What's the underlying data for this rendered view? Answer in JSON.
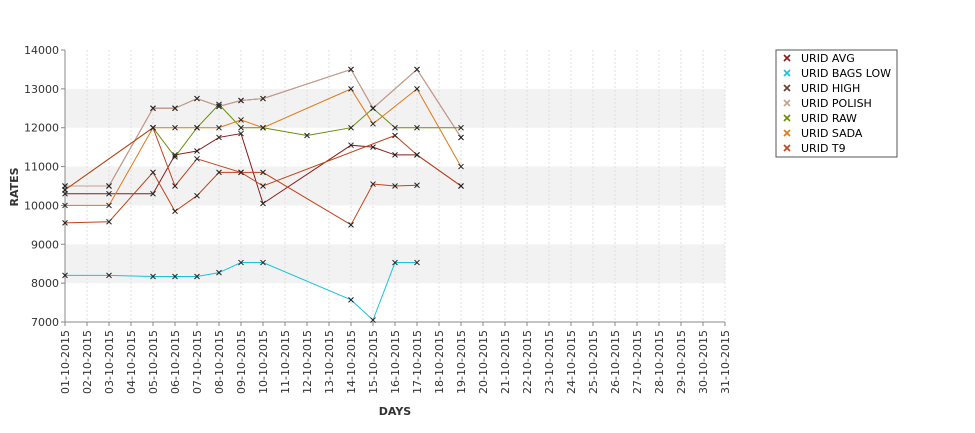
{
  "chart_data": {
    "type": "line",
    "xlabel": "DAYS",
    "ylabel": "RATES",
    "ylim": [
      7000,
      14000
    ],
    "yticks": [
      7000,
      8000,
      9000,
      10000,
      11000,
      12000,
      13000,
      14000
    ],
    "x": [
      "01-10-2015",
      "02-10-2015",
      "03-10-2015",
      "04-10-2015",
      "05-10-2015",
      "06-10-2015",
      "07-10-2015",
      "08-10-2015",
      "09-10-2015",
      "10-10-2015",
      "11-10-2015",
      "12-10-2015",
      "13-10-2015",
      "14-10-2015",
      "15-10-2015",
      "16-10-2015",
      "17-10-2015",
      "18-10-2015",
      "19-10-2015",
      "20-10-2015",
      "21-10-2015",
      "22-10-2015",
      "23-10-2015",
      "24-10-2015",
      "25-10-2015",
      "26-10-2015",
      "27-10-2015",
      "28-10-2015",
      "29-10-2015",
      "30-10-2015",
      "31-10-2015"
    ],
    "grid": true,
    "legend_position": "right",
    "series": [
      {
        "name": "URID AVG",
        "color": "#8b1a1a",
        "points": [
          [
            0,
            10300
          ],
          [
            2,
            10300
          ],
          [
            4,
            10300
          ],
          [
            5,
            11300
          ],
          [
            6,
            11400
          ],
          [
            7,
            11750
          ],
          [
            8,
            11850
          ],
          [
            9,
            10050
          ],
          [
            13,
            11550
          ],
          [
            14,
            11500
          ],
          [
            15,
            11300
          ],
          [
            16,
            11300
          ],
          [
            18,
            10500
          ]
        ]
      },
      {
        "name": "URID BAGS LOW",
        "color": "#18c4d8",
        "points": [
          [
            0,
            8200
          ],
          [
            2,
            8200
          ],
          [
            4,
            8170
          ],
          [
            5,
            8170
          ],
          [
            6,
            8170
          ],
          [
            7,
            8270
          ],
          [
            8,
            8530
          ],
          [
            9,
            8530
          ],
          [
            13,
            7570
          ],
          [
            14,
            7050
          ],
          [
            15,
            8530
          ],
          [
            16,
            8530
          ]
        ]
      },
      {
        "name": "URID HIGH",
        "color": "#6b3d2e",
        "points": [
          [
            0,
            10500
          ],
          [
            2,
            10500
          ],
          [
            4,
            12500
          ],
          [
            5,
            12500
          ],
          [
            6,
            12750
          ],
          [
            7,
            12550
          ],
          [
            8,
            12700
          ],
          [
            9,
            12750
          ],
          [
            13,
            13500
          ],
          [
            14,
            12500
          ],
          [
            16,
            13500
          ],
          [
            18,
            11750
          ]
        ]
      },
      {
        "name": "URID POLISH",
        "color": "#c8a090",
        "points": [
          [
            0,
            10500
          ],
          [
            2,
            10500
          ],
          [
            4,
            12500
          ],
          [
            5,
            12500
          ],
          [
            6,
            12750
          ],
          [
            7,
            12550
          ],
          [
            8,
            12700
          ],
          [
            9,
            12750
          ],
          [
            13,
            13500
          ],
          [
            14,
            12500
          ],
          [
            16,
            13500
          ],
          [
            18,
            11750
          ]
        ]
      },
      {
        "name": "URID RAW",
        "color": "#6b8e0a",
        "points": [
          [
            0,
            10400
          ],
          [
            4,
            12000
          ],
          [
            5,
            11250
          ],
          [
            6,
            12000
          ],
          [
            7,
            12600
          ],
          [
            8,
            12000
          ],
          [
            9,
            12000
          ],
          [
            11,
            11800
          ],
          [
            13,
            12000
          ],
          [
            14,
            12500
          ],
          [
            15,
            12000
          ],
          [
            16,
            12000
          ],
          [
            18,
            12000
          ]
        ]
      },
      {
        "name": "URID SADA",
        "color": "#e07818",
        "points": [
          [
            0,
            10000
          ],
          [
            2,
            10000
          ],
          [
            4,
            12000
          ],
          [
            5,
            12000
          ],
          [
            6,
            12000
          ],
          [
            7,
            12000
          ],
          [
            8,
            12200
          ],
          [
            9,
            12000
          ],
          [
            13,
            13000
          ],
          [
            14,
            12100
          ],
          [
            16,
            13000
          ],
          [
            18,
            11000
          ]
        ]
      },
      {
        "name": "URID T9",
        "color": "#c0441c",
        "points": [
          [
            0,
            9550
          ],
          [
            2,
            9580
          ],
          [
            4,
            10850
          ],
          [
            5,
            9850
          ],
          [
            6,
            10250
          ],
          [
            7,
            10850
          ],
          [
            8,
            10850
          ],
          [
            9,
            10850
          ],
          [
            13,
            9500
          ],
          [
            14,
            10550
          ],
          [
            15,
            10500
          ],
          [
            16,
            10520
          ]
        ]
      },
      {
        "name": "",
        "color": "#c0441c",
        "points": [
          [
            0,
            10400
          ],
          [
            4,
            12000
          ],
          [
            5,
            10500
          ],
          [
            6,
            11200
          ],
          [
            8,
            10850
          ],
          [
            9,
            10500
          ],
          [
            15,
            11800
          ],
          [
            16,
            11300
          ],
          [
            18,
            10500
          ]
        ]
      }
    ]
  }
}
